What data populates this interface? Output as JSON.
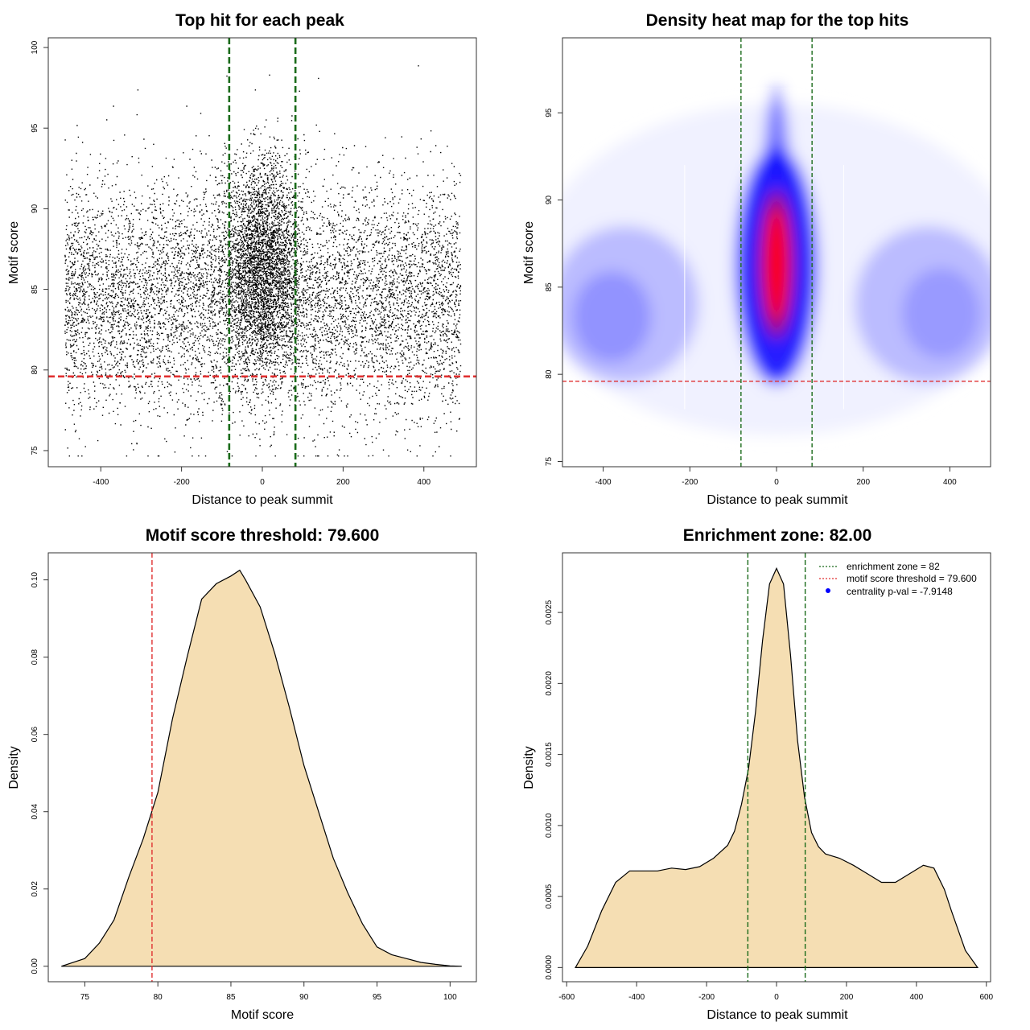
{
  "colors": {
    "threshold_line": "#e03030",
    "zone_line": "#1a6b1a",
    "density_fill": "#f5deb3",
    "heat_low": "#ffffff",
    "heat_mid": "#0000ff",
    "heat_high": "#ff0000",
    "points": "#000000"
  },
  "chart_data": [
    {
      "type": "scatter",
      "title": "Top hit for each peak",
      "xlabel": "Distance to peak summit",
      "ylabel": "Motif score",
      "xlim": [
        -530,
        530
      ],
      "ylim": [
        74,
        100.6
      ],
      "xticks": [
        -400,
        -200,
        0,
        200,
        400
      ],
      "yticks": [
        75,
        80,
        85,
        90,
        95,
        100
      ],
      "hlines": [
        79.6
      ],
      "vlines": [
        -82,
        82
      ],
      "point_cloud": {
        "x_range": [
          -490,
          490
        ],
        "background": {
          "mean_score": 84.5,
          "sd_score": 3.6
        },
        "central_cluster": {
          "center_x": 0,
          "sd_x": 45,
          "mean_score": 86.5,
          "sd_score": 3.3
        },
        "score_range": [
          74.7,
          98.9
        ]
      }
    },
    {
      "type": "heatmap",
      "title": "Density heat map for the top hits",
      "xlabel": "Distance to peak summit",
      "ylabel": "Motif score",
      "xlim": [
        -494,
        494
      ],
      "ylim": [
        74.7,
        99.3
      ],
      "xticks": [
        -400,
        -200,
        0,
        200,
        400
      ],
      "yticks": [
        75,
        80,
        85,
        90,
        95
      ],
      "hlines": [
        79.6
      ],
      "vlines": [
        -82,
        82
      ],
      "peak": {
        "x": 0,
        "score": 86.3
      }
    },
    {
      "type": "area",
      "title": "Motif score threshold: 79.600",
      "xlabel": "Motif score",
      "ylabel": "Density",
      "xlim": [
        72.5,
        101.8
      ],
      "ylim": [
        -0.004,
        0.107
      ],
      "xticks": [
        75,
        80,
        85,
        90,
        95,
        100
      ],
      "yticks": [
        0.0,
        0.02,
        0.04,
        0.06,
        0.08,
        0.1
      ],
      "ytick_labels": [
        "0.00",
        "0.02",
        "0.04",
        "0.06",
        "0.08",
        "0.10"
      ],
      "vlines": [
        79.6
      ],
      "x": [
        73.4,
        75,
        76,
        77,
        78,
        79,
        80,
        81,
        82,
        83,
        84,
        85,
        85.6,
        86,
        87,
        88,
        89,
        90,
        91,
        92,
        93,
        94,
        95,
        96,
        97,
        98,
        99,
        100,
        100.8
      ],
      "y": [
        0.0,
        0.002,
        0.006,
        0.012,
        0.023,
        0.033,
        0.045,
        0.064,
        0.08,
        0.095,
        0.099,
        0.101,
        0.1025,
        0.1,
        0.093,
        0.081,
        0.067,
        0.052,
        0.04,
        0.028,
        0.019,
        0.011,
        0.005,
        0.003,
        0.002,
        0.001,
        0.0005,
        0.0001,
        0.0
      ]
    },
    {
      "type": "area",
      "title": "Enrichment zone: 82.00",
      "xlabel": "Distance to peak summit",
      "ylabel": "Density",
      "xlim": [
        -612,
        612
      ],
      "ylim": [
        -0.0001,
        0.00292
      ],
      "xticks": [
        -600,
        -400,
        -200,
        0,
        200,
        400,
        600
      ],
      "yticks": [
        0.0,
        0.0005,
        0.001,
        0.0015,
        0.002,
        0.0025
      ],
      "ytick_labels": [
        "0.0000",
        "0.0005",
        "0.0010",
        "0.0015",
        "0.0020",
        "0.0025"
      ],
      "vlines": [
        -82,
        82
      ],
      "x": [
        -575,
        -540,
        -500,
        -460,
        -420,
        -380,
        -340,
        -300,
        -260,
        -220,
        -180,
        -140,
        -120,
        -100,
        -80,
        -60,
        -40,
        -20,
        0,
        20,
        40,
        60,
        80,
        100,
        120,
        140,
        180,
        220,
        260,
        300,
        340,
        380,
        420,
        450,
        480,
        500,
        540,
        575
      ],
      "y": [
        0.0,
        0.00015,
        0.0004,
        0.0006,
        0.00068,
        0.00068,
        0.00068,
        0.0007,
        0.00069,
        0.00071,
        0.00077,
        0.00086,
        0.00096,
        0.00115,
        0.0014,
        0.0018,
        0.0023,
        0.0027,
        0.00281,
        0.0027,
        0.0022,
        0.0016,
        0.0012,
        0.00095,
        0.00085,
        0.0008,
        0.00077,
        0.00072,
        0.00066,
        0.0006,
        0.0006,
        0.00066,
        0.00072,
        0.0007,
        0.00055,
        0.0004,
        0.00012,
        0.0
      ],
      "legend": {
        "position": "top-right",
        "entries": [
          {
            "label": "enrichment zone = 82",
            "style": "dotted-line",
            "color": "#1a6b1a"
          },
          {
            "label": "motif score threshold = 79.600",
            "style": "dotted-line",
            "color": "#e03030"
          },
          {
            "label": "centrality p-val = -7.9148",
            "style": "point",
            "color": "#0000ff"
          }
        ]
      }
    }
  ]
}
